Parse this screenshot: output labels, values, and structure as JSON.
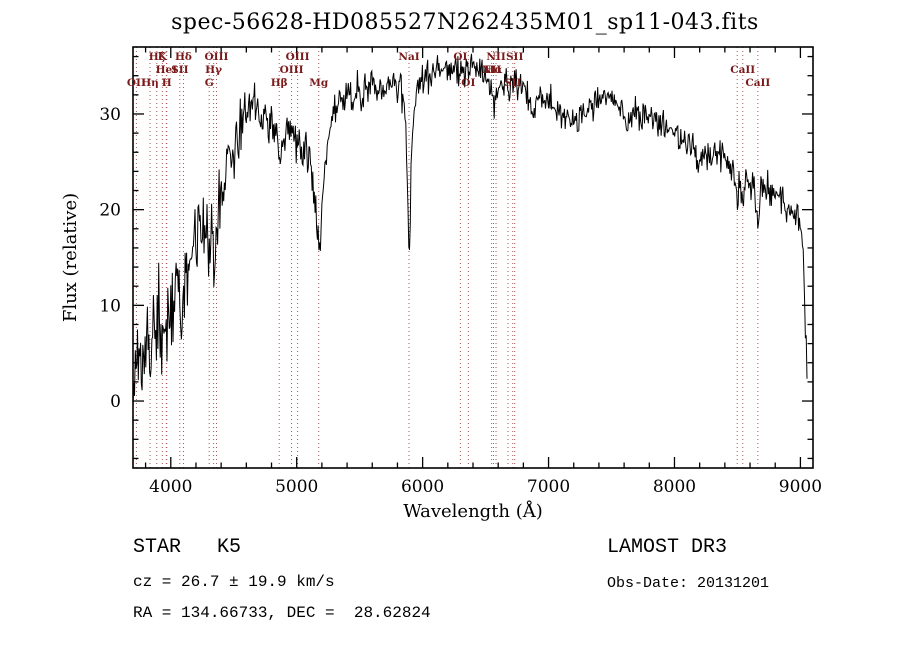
{
  "title": "spec-56628-HD085527N262435M01_sp11-043.fits",
  "annotations": {
    "class_label": "STAR   K5",
    "survey": "LAMOST DR3",
    "cz": "cz = 26.7 ± 19.9 km/s",
    "obs_date": "Obs-Date: 20131201",
    "coords": "RA = 134.66733, DEC =  28.62824"
  },
  "chart_data": {
    "type": "line",
    "title": "spec-56628-HD085527N262435M01_sp11-043.fits",
    "xlabel": "Wavelength (Å)",
    "ylabel": "Flux (relative)",
    "xlim": [
      3700,
      9100
    ],
    "ylim": [
      -7,
      37
    ],
    "xticks": [
      4000,
      5000,
      6000,
      7000,
      8000,
      9000
    ],
    "yticks": [
      0,
      10,
      20,
      30
    ],
    "x_minor_step": 200,
    "y_minor_step": 2,
    "grid": false,
    "legend": "none",
    "line_color": "#000000",
    "spectral_line_color": "#aa5555",
    "spectral_label_color": "#7a1a1a",
    "spectrum": {
      "sample_step": 6,
      "noise_seed": 20131201,
      "noise_sigma_profile": [
        [
          3700,
          2.6
        ],
        [
          4100,
          2.1
        ],
        [
          4500,
          1.5
        ],
        [
          4900,
          1.1
        ],
        [
          5300,
          1.0
        ],
        [
          5900,
          0.9
        ],
        [
          6500,
          0.8
        ],
        [
          7200,
          0.8
        ],
        [
          8000,
          0.85
        ],
        [
          9055,
          0.9
        ]
      ],
      "anchors": [
        [
          3700,
          0.5
        ],
        [
          3715,
          3
        ],
        [
          3727,
          1.5
        ],
        [
          3740,
          4
        ],
        [
          3760,
          5.5
        ],
        [
          3780,
          5
        ],
        [
          3800,
          7
        ],
        [
          3820,
          6.5
        ],
        [
          3835,
          5
        ],
        [
          3850,
          8
        ],
        [
          3870,
          8.5
        ],
        [
          3889,
          7
        ],
        [
          3910,
          9
        ],
        [
          3933,
          5.5
        ],
        [
          3950,
          9.5
        ],
        [
          3968,
          7
        ],
        [
          3985,
          10
        ],
        [
          4000,
          10.5
        ],
        [
          4030,
          12
        ],
        [
          4060,
          13
        ],
        [
          4072,
          11
        ],
        [
          4101,
          9.5
        ],
        [
          4130,
          14
        ],
        [
          4160,
          16
        ],
        [
          4200,
          17
        ],
        [
          4230,
          19
        ],
        [
          4260,
          20
        ],
        [
          4290,
          18
        ],
        [
          4305,
          14.5
        ],
        [
          4320,
          17
        ],
        [
          4340,
          15.5
        ],
        [
          4363,
          18
        ],
        [
          4390,
          21
        ],
        [
          4420,
          23
        ],
        [
          4450,
          25
        ],
        [
          4480,
          26
        ],
        [
          4510,
          27
        ],
        [
          4540,
          28
        ],
        [
          4570,
          29.5
        ],
        [
          4600,
          30
        ],
        [
          4630,
          31
        ],
        [
          4660,
          31.5
        ],
        [
          4690,
          30.5
        ],
        [
          4720,
          30
        ],
        [
          4750,
          29.5
        ],
        [
          4780,
          29
        ],
        [
          4810,
          28.5
        ],
        [
          4840,
          27.5
        ],
        [
          4861,
          25
        ],
        [
          4880,
          27
        ],
        [
          4900,
          28
        ],
        [
          4930,
          28.5
        ],
        [
          4960,
          28
        ],
        [
          5000,
          27.5
        ],
        [
          5040,
          27
        ],
        [
          5080,
          26
        ],
        [
          5120,
          24
        ],
        [
          5160,
          18
        ],
        [
          5185,
          15.5
        ],
        [
          5210,
          22
        ],
        [
          5240,
          27
        ],
        [
          5270,
          29
        ],
        [
          5300,
          30.5
        ],
        [
          5330,
          31
        ],
        [
          5360,
          31.5
        ],
        [
          5400,
          32
        ],
        [
          5440,
          31.5
        ],
        [
          5480,
          32
        ],
        [
          5520,
          32
        ],
        [
          5560,
          32.5
        ],
        [
          5600,
          33
        ],
        [
          5650,
          32.5
        ],
        [
          5700,
          33
        ],
        [
          5750,
          33
        ],
        [
          5800,
          33
        ],
        [
          5840,
          32.5
        ],
        [
          5870,
          28
        ],
        [
          5892,
          14.5
        ],
        [
          5915,
          27
        ],
        [
          5940,
          32
        ],
        [
          5970,
          33
        ],
        [
          6000,
          33.5
        ],
        [
          6040,
          34
        ],
        [
          6080,
          34.5
        ],
        [
          6120,
          35
        ],
        [
          6160,
          34.5
        ],
        [
          6200,
          34.8
        ],
        [
          6240,
          34.5
        ],
        [
          6280,
          34.2
        ],
        [
          6320,
          34.5
        ],
        [
          6360,
          35
        ],
        [
          6400,
          35.3
        ],
        [
          6440,
          34.8
        ],
        [
          6480,
          34.2
        ],
        [
          6520,
          33.8
        ],
        [
          6545,
          33
        ],
        [
          6563,
          30.5
        ],
        [
          6585,
          32.5
        ],
        [
          6620,
          33
        ],
        [
          6660,
          32.8
        ],
        [
          6700,
          32.5
        ],
        [
          6740,
          32.8
        ],
        [
          6780,
          33
        ],
        [
          6820,
          32.5
        ],
        [
          6860,
          31
        ],
        [
          6880,
          30
        ],
        [
          6900,
          31.5
        ],
        [
          6940,
          31.8
        ],
        [
          6980,
          31.5
        ],
        [
          7020,
          31
        ],
        [
          7060,
          30.5
        ],
        [
          7100,
          30.2
        ],
        [
          7140,
          29.8
        ],
        [
          7180,
          29
        ],
        [
          7220,
          29.5
        ],
        [
          7260,
          30.2
        ],
        [
          7300,
          30.8
        ],
        [
          7340,
          31
        ],
        [
          7380,
          31.2
        ],
        [
          7420,
          31.5
        ],
        [
          7460,
          31.8
        ],
        [
          7500,
          31.8
        ],
        [
          7540,
          31.5
        ],
        [
          7580,
          30
        ],
        [
          7610,
          28.5
        ],
        [
          7640,
          29.5
        ],
        [
          7680,
          30
        ],
        [
          7720,
          30
        ],
        [
          7760,
          29.8
        ],
        [
          7800,
          29.5
        ],
        [
          7840,
          29.2
        ],
        [
          7880,
          28.8
        ],
        [
          7920,
          28.5
        ],
        [
          7960,
          28.2
        ],
        [
          8000,
          28
        ],
        [
          8040,
          27.6
        ],
        [
          8080,
          27.2
        ],
        [
          8120,
          26.8
        ],
        [
          8160,
          26.2
        ],
        [
          8200,
          24.8
        ],
        [
          8230,
          25.8
        ],
        [
          8270,
          26
        ],
        [
          8310,
          25.8
        ],
        [
          8350,
          25.4
        ],
        [
          8390,
          25
        ],
        [
          8430,
          24.6
        ],
        [
          8470,
          24
        ],
        [
          8498,
          20.5
        ],
        [
          8520,
          23.5
        ],
        [
          8542,
          20
        ],
        [
          8565,
          23
        ],
        [
          8600,
          22.8
        ],
        [
          8630,
          22.5
        ],
        [
          8662,
          18.5
        ],
        [
          8690,
          22.5
        ],
        [
          8720,
          22.3
        ],
        [
          8760,
          22
        ],
        [
          8800,
          21.5
        ],
        [
          8840,
          21
        ],
        [
          8880,
          20.5
        ],
        [
          8920,
          20
        ],
        [
          8960,
          19.8
        ],
        [
          9000,
          19.5
        ],
        [
          9020,
          16
        ],
        [
          9040,
          8
        ],
        [
          9055,
          3
        ]
      ]
    },
    "spectral_lines": [
      {
        "wl": 3727,
        "label": "OII",
        "row": 3
      },
      {
        "wl": 3835,
        "label": "Hη",
        "row": 3
      },
      {
        "wl": 3889,
        "label": "Hζ",
        "row": 1
      },
      {
        "wl": 3933,
        "label": "K",
        "row": 1
      },
      {
        "wl": 3965,
        "label": "HeI",
        "row": 2
      },
      {
        "wl": 3968,
        "label": "H",
        "row": 3
      },
      {
        "wl": 4072,
        "label": "SII",
        "row": 2
      },
      {
        "wl": 4101,
        "label": "Hδ",
        "row": 1
      },
      {
        "wl": 4305,
        "label": "G",
        "row": 3
      },
      {
        "wl": 4340,
        "label": "Hγ",
        "row": 2
      },
      {
        "wl": 4363,
        "label": "OIII",
        "row": 1
      },
      {
        "wl": 4861,
        "label": "Hβ",
        "row": 3
      },
      {
        "wl": 4959,
        "label": "OIII",
        "row": 2
      },
      {
        "wl": 5007,
        "label": "OIII",
        "row": 1
      },
      {
        "wl": 5175,
        "label": "Mg",
        "row": 3
      },
      {
        "wl": 5892,
        "label": "NaI",
        "row": 1
      },
      {
        "wl": 6300,
        "label": "OI",
        "row": 1
      },
      {
        "wl": 6363,
        "label": "OI",
        "row": 3
      },
      {
        "wl": 6548,
        "label": "NII",
        "row": 2
      },
      {
        "wl": 6563,
        "label": "Hα",
        "row": 2
      },
      {
        "wl": 6583,
        "label": "NII",
        "row": 1
      },
      {
        "wl": 6678,
        "label": "",
        "row": 0
      },
      {
        "wl": 6716,
        "label": "SII",
        "row": 3
      },
      {
        "wl": 6731,
        "label": "SII",
        "row": 1
      },
      {
        "wl": 8498,
        "label": "",
        "row": 0
      },
      {
        "wl": 8542,
        "label": "CaII",
        "row": 2
      },
      {
        "wl": 8662,
        "label": "CaII",
        "row": 3
      }
    ]
  }
}
